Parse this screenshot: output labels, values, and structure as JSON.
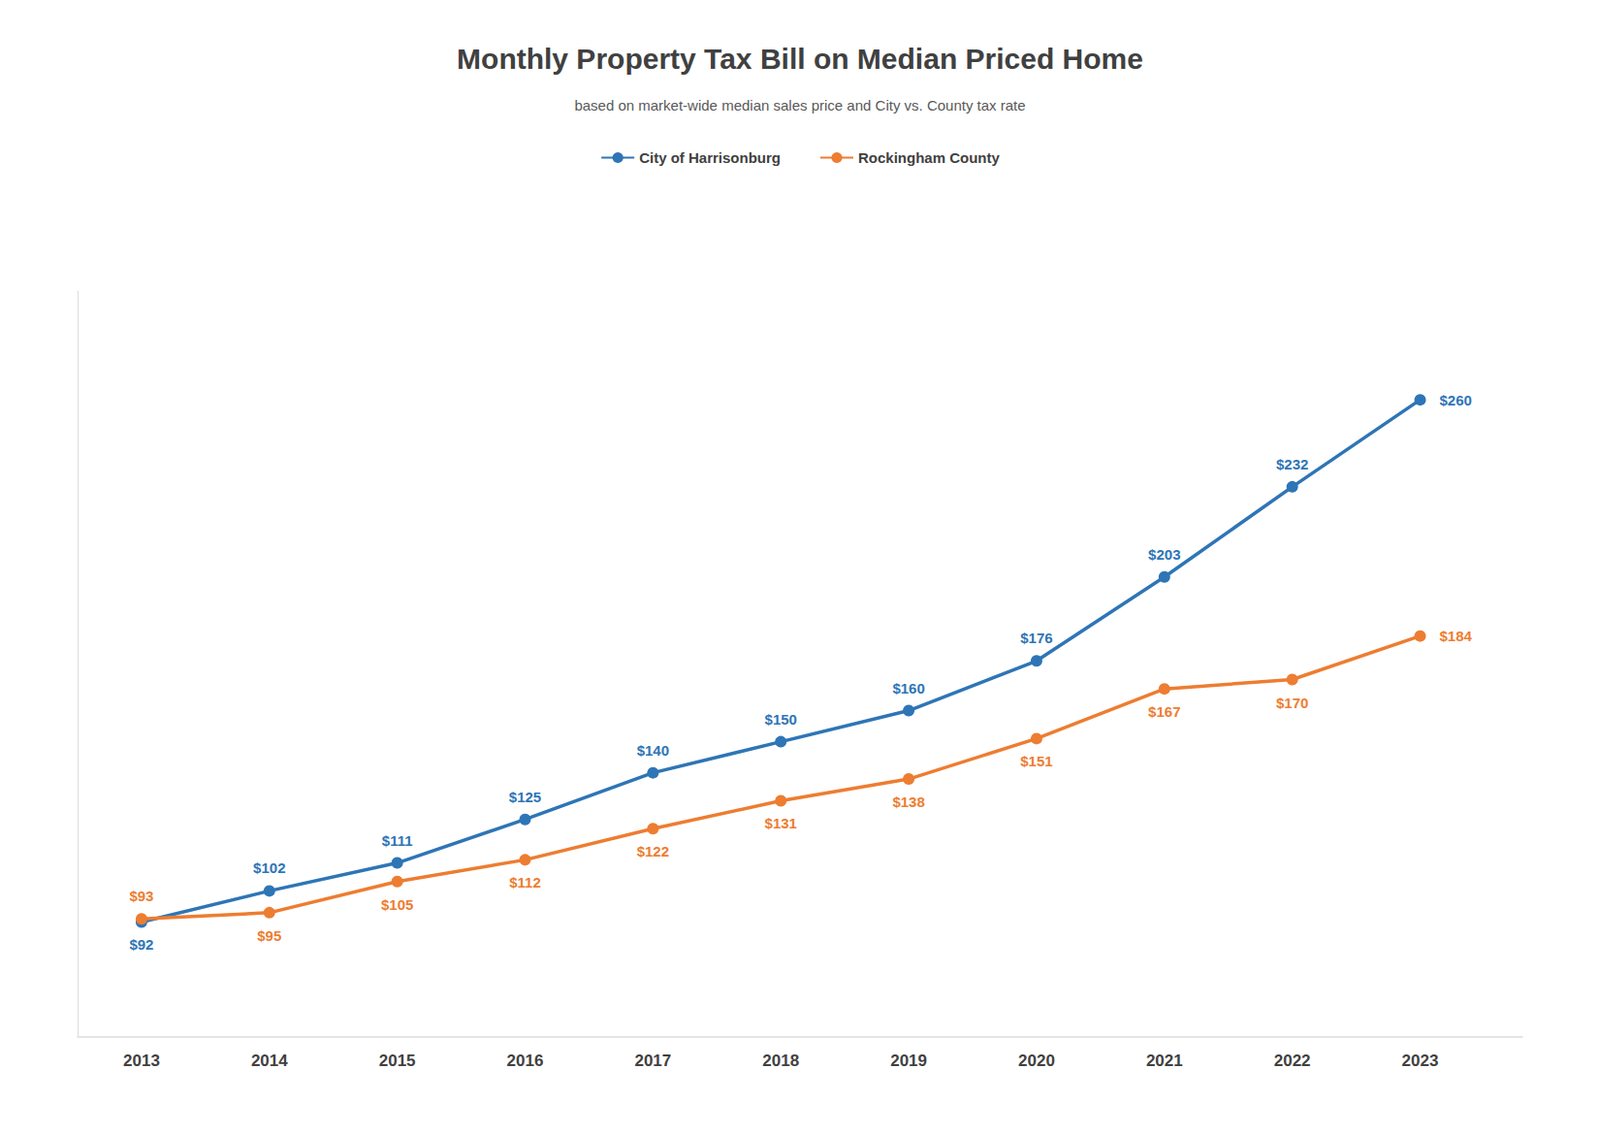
{
  "chart_data": {
    "type": "line",
    "title": "Monthly Property Tax Bill on Median Priced Home",
    "subtitle": "based on market-wide median sales price and City vs. County tax rate",
    "x": [
      2013,
      2014,
      2015,
      2016,
      2017,
      2018,
      2019,
      2020,
      2021,
      2022,
      2023
    ],
    "xlim": [
      2012.5,
      2023.8
    ],
    "xticks": [
      2013,
      2014,
      2015,
      2016,
      2017,
      2018,
      2019,
      2020,
      2021,
      2022,
      2023
    ],
    "ylim": [
      55,
      295
    ],
    "grid": false,
    "legend": "top",
    "tick_labels": "x",
    "data_labels": true,
    "series": [
      {
        "name": "City of Harrisonburg",
        "color": "#2E75B6",
        "marker": "circle",
        "line_style": "solid",
        "values": [
          92,
          102,
          111,
          125,
          140,
          150,
          160,
          176,
          203,
          232,
          260
        ],
        "value_labels": [
          "$92",
          "$102",
          "$111",
          "$125",
          "$140",
          "$150",
          "$160",
          "$176",
          "$203",
          "$232",
          "$260"
        ]
      },
      {
        "name": "Rockingham County",
        "color": "#ED7D31",
        "marker": "circle",
        "line_style": "solid",
        "values": [
          93,
          95,
          105,
          112,
          122,
          131,
          138,
          151,
          167,
          170,
          184
        ],
        "value_labels": [
          "$93",
          "$95",
          "$105",
          "$112",
          "$122",
          "$131",
          "$138",
          "$151",
          "$167",
          "$170",
          "$184"
        ]
      }
    ]
  }
}
